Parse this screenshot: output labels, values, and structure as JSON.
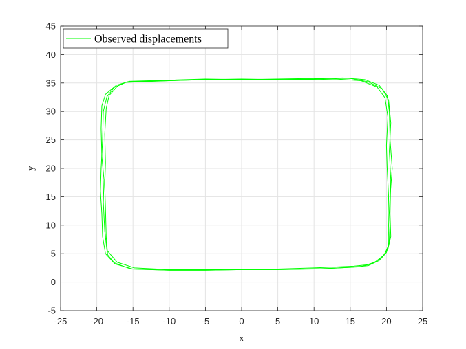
{
  "chart_data": {
    "type": "line",
    "xlabel": "x",
    "ylabel": "y",
    "xlim": [
      -25,
      25
    ],
    "ylim": [
      -5,
      45
    ],
    "xticks": [
      -25,
      -20,
      -15,
      -10,
      -5,
      0,
      5,
      10,
      15,
      20,
      25
    ],
    "yticks": [
      -5,
      0,
      5,
      10,
      15,
      20,
      25,
      30,
      35,
      40,
      45
    ],
    "grid": true,
    "legend_position": "top-left",
    "series": [
      {
        "name": "Observed displacements",
        "color": "#00ff00",
        "laps": [
          [
            [
              -16,
              35.1
            ],
            [
              -10,
              35.4
            ],
            [
              -5,
              35.6
            ],
            [
              0,
              35.7
            ],
            [
              5,
              35.6
            ],
            [
              10,
              35.7
            ],
            [
              14,
              35.9
            ],
            [
              17,
              35.6
            ],
            [
              19,
              34.6
            ],
            [
              20.1,
              32.8
            ],
            [
              20.4,
              30
            ],
            [
              20.5,
              25
            ],
            [
              20.8,
              20
            ],
            [
              20.5,
              15
            ],
            [
              20.3,
              10
            ],
            [
              20.4,
              7
            ],
            [
              20,
              5.2
            ],
            [
              19,
              3.8
            ],
            [
              17.5,
              2.9
            ],
            [
              15,
              2.6
            ],
            [
              10,
              2.3
            ],
            [
              5,
              2.2
            ],
            [
              0,
              2.2
            ],
            [
              -5,
              2.1
            ],
            [
              -10,
              2.1
            ],
            [
              -15,
              2.3
            ],
            [
              -17.5,
              3.2
            ],
            [
              -18.8,
              5
            ],
            [
              -19.2,
              8
            ],
            [
              -19.3,
              12
            ],
            [
              -19.5,
              16
            ],
            [
              -19.4,
              20
            ],
            [
              -19.2,
              25
            ],
            [
              -19.1,
              30
            ],
            [
              -18.6,
              32.6
            ],
            [
              -17.6,
              34.2
            ],
            [
              -16,
              35.1
            ]
          ],
          [
            [
              -15.5,
              35.3
            ],
            [
              -10,
              35.5
            ],
            [
              -5,
              35.7
            ],
            [
              0,
              35.6
            ],
            [
              5,
              35.7
            ],
            [
              10,
              35.8
            ],
            [
              15,
              35.8
            ],
            [
              17.5,
              35.2
            ],
            [
              19.4,
              34
            ],
            [
              20.3,
              32
            ],
            [
              20.6,
              28
            ],
            [
              20.4,
              23
            ],
            [
              20.6,
              18
            ],
            [
              20.5,
              12
            ],
            [
              20.6,
              8
            ],
            [
              20.2,
              5.8
            ],
            [
              19.3,
              4.2
            ],
            [
              17.8,
              3.1
            ],
            [
              15.5,
              2.8
            ],
            [
              10,
              2.5
            ],
            [
              5,
              2.3
            ],
            [
              0,
              2.3
            ],
            [
              -5,
              2.2
            ],
            [
              -10,
              2.2
            ],
            [
              -14.8,
              2.5
            ],
            [
              -17.2,
              3.5
            ],
            [
              -18.6,
              5.6
            ],
            [
              -18.9,
              9
            ],
            [
              -19.1,
              14
            ],
            [
              -19,
              18
            ],
            [
              -19.3,
              22
            ],
            [
              -19.4,
              27
            ],
            [
              -19.3,
              31
            ],
            [
              -18.8,
              33
            ],
            [
              -17.3,
              34.6
            ],
            [
              -15.5,
              35.3
            ]
          ],
          [
            [
              -15.8,
              35.2
            ],
            [
              -10,
              35.4
            ],
            [
              -5,
              35.6
            ],
            [
              0,
              35.6
            ],
            [
              5,
              35.6
            ],
            [
              10,
              35.6
            ],
            [
              13,
              35.7
            ],
            [
              16.5,
              35.4
            ],
            [
              18.7,
              34.3
            ],
            [
              19.8,
              32.4
            ],
            [
              20.2,
              29
            ],
            [
              20,
              24
            ],
            [
              20.1,
              20
            ],
            [
              20.3,
              15
            ],
            [
              20.2,
              10
            ],
            [
              20.3,
              6.5
            ],
            [
              19.7,
              4.8
            ],
            [
              18.4,
              3.5
            ],
            [
              16.5,
              2.7
            ],
            [
              12,
              2.4
            ],
            [
              5,
              2.2
            ],
            [
              0,
              2.2
            ],
            [
              -5,
              2.1
            ],
            [
              -10,
              2.1
            ],
            [
              -15.3,
              2.3
            ],
            [
              -17.6,
              3.4
            ],
            [
              -18.5,
              4.8
            ],
            [
              -18.7,
              8
            ],
            [
              -18.8,
              13
            ],
            [
              -18.9,
              17
            ],
            [
              -18.8,
              21
            ],
            [
              -18.9,
              26
            ],
            [
              -18.7,
              30.5
            ],
            [
              -18.3,
              32.8
            ],
            [
              -17.1,
              34.5
            ],
            [
              -15.8,
              35.2
            ]
          ]
        ]
      }
    ]
  }
}
